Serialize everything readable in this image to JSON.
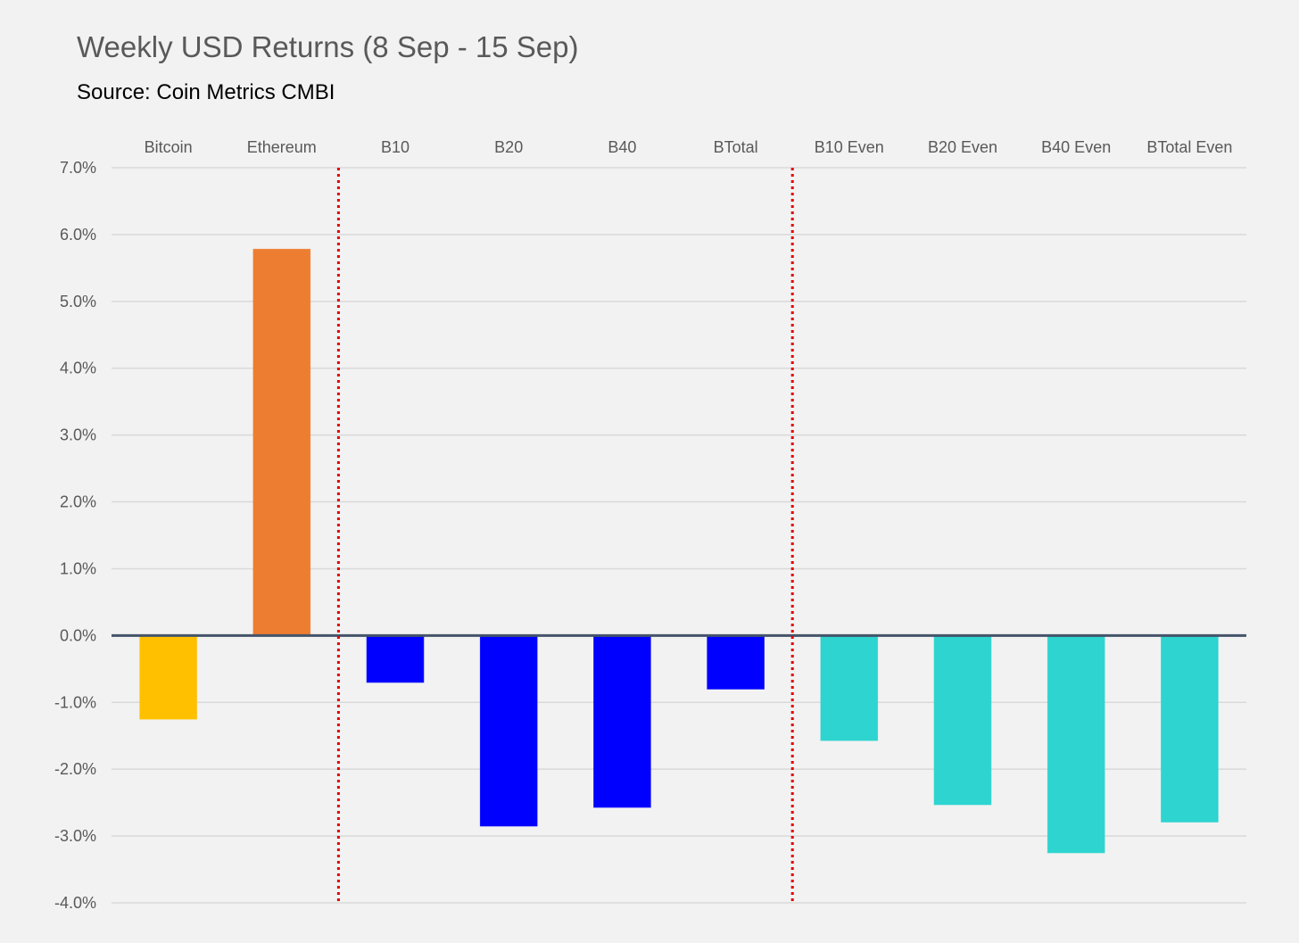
{
  "chart_data": {
    "type": "bar",
    "title": "Weekly USD Returns (8 Sep - 15 Sep)",
    "subtitle": "Source: Coin Metrics CMBI",
    "categories": [
      "Bitcoin",
      "Ethereum",
      "B10",
      "B20",
      "B40",
      "BTotal",
      "B10 Even",
      "B20 Even",
      "B40 Even",
      "BTotal Even"
    ],
    "values": [
      -1.25,
      5.78,
      -0.7,
      -2.85,
      -2.57,
      -0.8,
      -1.57,
      -2.53,
      -3.25,
      -2.79
    ],
    "bar_colors": [
      "#ffc000",
      "#ed7d31",
      "#0000ff",
      "#0000ff",
      "#0000ff",
      "#0000ff",
      "#2dd4d0",
      "#2dd4d0",
      "#2dd4d0",
      "#2dd4d0"
    ],
    "ylim": [
      -4.0,
      7.0
    ],
    "yticks": [
      7.0,
      6.0,
      5.0,
      4.0,
      3.0,
      2.0,
      1.0,
      0.0,
      -1.0,
      -2.0,
      -3.0,
      -4.0
    ],
    "ytick_labels": [
      "7.0%",
      "6.0%",
      "5.0%",
      "4.0%",
      "3.0%",
      "2.0%",
      "1.0%",
      "0.0%",
      "-1.0%",
      "-2.0%",
      "-3.0%",
      "-4.0%"
    ],
    "category_labels_position": "top",
    "grid": true,
    "gridline_color": "#d9d9d9",
    "zero_line_color": "#44546a",
    "divider_color": "#e00000",
    "dividers_after_category": [
      "Ethereum",
      "BTotal"
    ]
  }
}
